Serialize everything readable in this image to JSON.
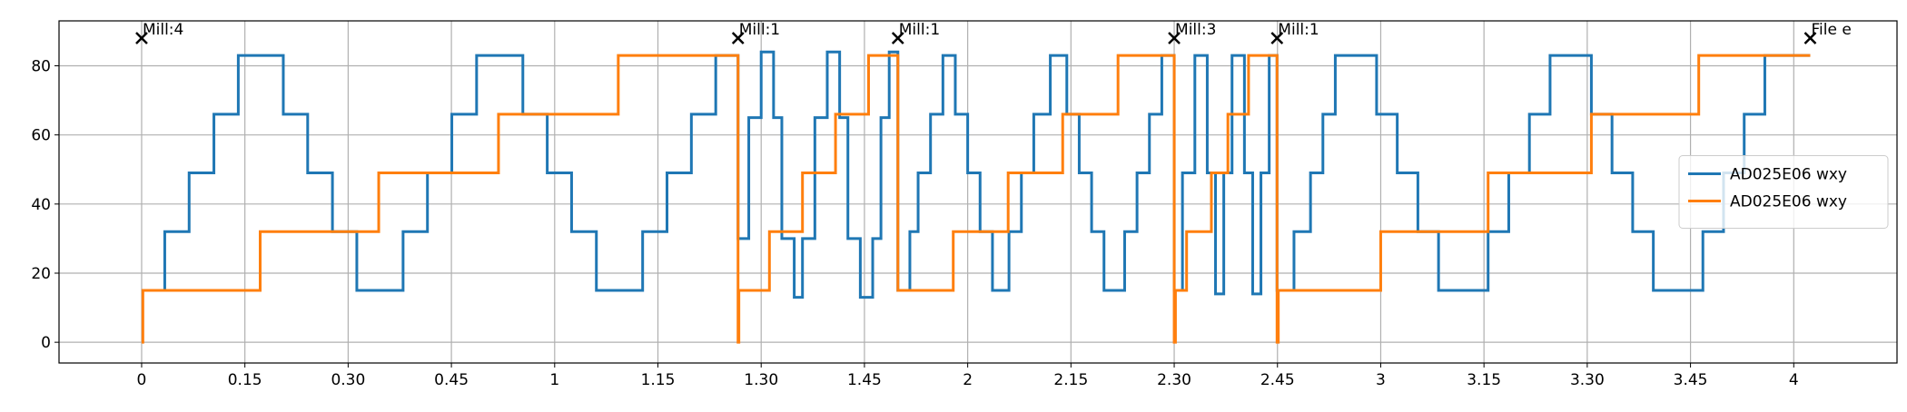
{
  "chart_data": {
    "type": "line",
    "drawstyle": "steps-post",
    "grid": true,
    "legend": "center right",
    "xlim": [
      -0.2,
      4.25
    ],
    "ylim": [
      -6,
      93
    ],
    "xticks": [
      0,
      {
        "value": 0.25,
        "label": "0.15"
      },
      {
        "value": 0.5,
        "label": "0.30"
      },
      {
        "value": 0.75,
        "label": "0.45"
      },
      1,
      {
        "value": 1.25,
        "label": "1.15"
      },
      {
        "value": 1.5,
        "label": "1.30"
      },
      {
        "value": 1.75,
        "label": "1.45"
      },
      2,
      {
        "value": 2.25,
        "label": "2.15"
      },
      {
        "value": 2.5,
        "label": "2.30"
      },
      {
        "value": 2.75,
        "label": "2.45"
      },
      3,
      {
        "value": 3.25,
        "label": "3.15"
      },
      {
        "value": 3.5,
        "label": "3.30"
      },
      {
        "value": 3.75,
        "label": "3.45"
      },
      4
    ],
    "yticks": [
      0,
      20,
      40,
      60,
      80
    ],
    "annotations": [
      {
        "text": "Mill:4",
        "x": 0,
        "y": 88
      },
      {
        "text": "Mill:1",
        "x": 1.444,
        "y": 88
      },
      {
        "text": "Mill:1",
        "x": 1.831,
        "y": 88
      },
      {
        "text": "Mill:3",
        "x": 2.5,
        "y": 88
      },
      {
        "text": "Mill:1",
        "x": 2.749,
        "y": 88
      },
      {
        "text": "File e",
        "x": 4.04,
        "y": 88
      }
    ],
    "series": [
      {
        "name": "AD025E06 wxy",
        "color": "#1f77b4",
        "x": [
          0,
          0.056,
          0.115,
          0.175,
          0.234,
          0.343,
          0.402,
          0.462,
          0.521,
          0.633,
          0.692,
          0.751,
          0.811,
          0.923,
          0.982,
          1.041,
          1.101,
          1.213,
          1.272,
          1.331,
          1.39,
          1.444,
          1.47,
          1.5,
          1.53,
          1.55,
          1.58,
          1.6,
          1.63,
          1.66,
          1.69,
          1.71,
          1.74,
          1.77,
          1.79,
          1.81,
          1.831,
          1.86,
          1.88,
          1.91,
          1.94,
          1.97,
          2.0,
          2.03,
          2.06,
          2.1,
          2.13,
          2.16,
          2.2,
          2.24,
          2.27,
          2.3,
          2.33,
          2.38,
          2.41,
          2.44,
          2.47,
          2.5,
          2.52,
          2.55,
          2.58,
          2.6,
          2.62,
          2.64,
          2.67,
          2.69,
          2.71,
          2.73,
          2.749,
          2.79,
          2.83,
          2.86,
          2.89,
          2.99,
          3.04,
          3.09,
          3.14,
          3.26,
          3.31,
          3.36,
          3.41,
          3.51,
          3.56,
          3.61,
          3.66,
          3.78,
          3.83,
          3.88,
          3.93,
          4.04
        ],
        "values": [
          15,
          32,
          49,
          66,
          83,
          66,
          49,
          32,
          15,
          32,
          49,
          66,
          83,
          66,
          49,
          32,
          15,
          32,
          49,
          66,
          83,
          30,
          65,
          84,
          65,
          30,
          13,
          30,
          65,
          84,
          65,
          30,
          13,
          30,
          65,
          84,
          15,
          32,
          49,
          66,
          83,
          66,
          49,
          32,
          15,
          32,
          49,
          66,
          83,
          66,
          49,
          32,
          15,
          32,
          49,
          66,
          83,
          15,
          49,
          83,
          49,
          14,
          49,
          83,
          49,
          14,
          49,
          83,
          15,
          32,
          49,
          66,
          83,
          66,
          49,
          32,
          15,
          32,
          49,
          66,
          83,
          66,
          49,
          32,
          15,
          32,
          49,
          66,
          83,
          83
        ]
      },
      {
        "name": "AD025E06 wxy",
        "color": "#ff7f0e",
        "x": [
          0,
          0.003,
          0.287,
          0.574,
          0.864,
          1.154,
          1.444,
          1.446,
          1.52,
          1.6,
          1.68,
          1.76,
          1.831,
          1.965,
          2.098,
          2.23,
          2.364,
          2.5,
          2.503,
          2.53,
          2.59,
          2.63,
          2.68,
          2.749,
          2.752,
          3.0,
          3.26,
          3.51,
          3.77,
          4.04
        ],
        "values": [
          0,
          15,
          32,
          49,
          66,
          83,
          0,
          15,
          32,
          49,
          66,
          83,
          15,
          32,
          49,
          66,
          83,
          0,
          15,
          32,
          49,
          66,
          83,
          0,
          15,
          32,
          49,
          66,
          83,
          83
        ]
      }
    ]
  }
}
